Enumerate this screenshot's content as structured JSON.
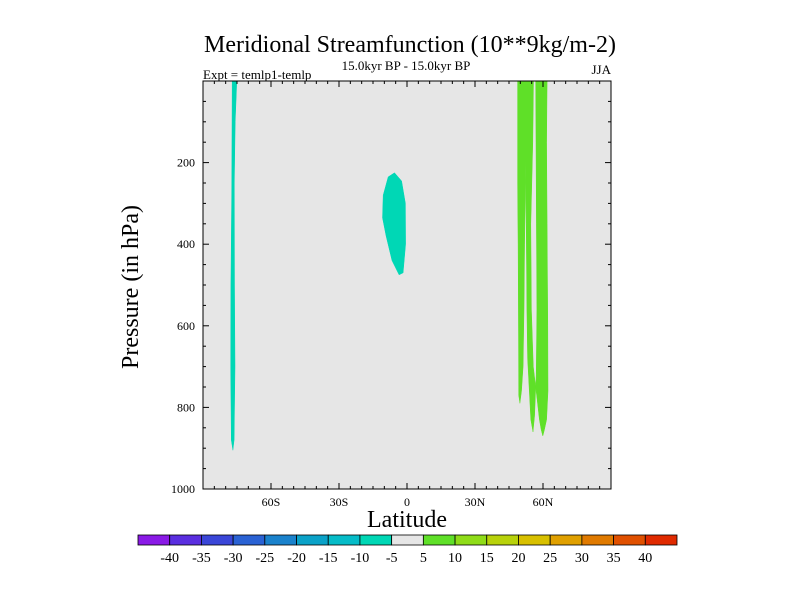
{
  "chart_data": {
    "type": "contour",
    "title": "Meridional Streamfunction (10**9kg/m-2)",
    "subtitle": "15.0kyr BP - 15.0kyr BP",
    "left_label": "Expt = temlp1-temlp",
    "right_label": "JJA",
    "xlabel": "Latitude",
    "ylabel": "Pressure (in hPa)",
    "xlim": [
      -90,
      90
    ],
    "ylim": [
      1000,
      0
    ],
    "x_ticks": [
      {
        "value": -60,
        "label": "60S"
      },
      {
        "value": -30,
        "label": "30S"
      },
      {
        "value": 0,
        "label": "0"
      },
      {
        "value": 30,
        "label": "30N"
      },
      {
        "value": 60,
        "label": "60N"
      }
    ],
    "y_ticks": [
      {
        "value": 200,
        "label": "200"
      },
      {
        "value": 400,
        "label": "400"
      },
      {
        "value": 600,
        "label": "600"
      },
      {
        "value": 800,
        "label": "800"
      },
      {
        "value": 1000,
        "label": "1000"
      }
    ],
    "background_color": "#e6e6e6",
    "colorbar": {
      "labels": [
        "-40",
        "-35",
        "-30",
        "-25",
        "-20",
        "-15",
        "-10",
        "-5",
        "5",
        "10",
        "15",
        "20",
        "25",
        "30",
        "35",
        "40"
      ],
      "colors": [
        "#8a1ae6",
        "#5a2ee0",
        "#3a46d8",
        "#2a62d4",
        "#1a82cc",
        "#0aa2c8",
        "#06bcc8",
        "#00d7b5",
        "#e6e6e6",
        "#5fe028",
        "#8fdc18",
        "#b8d20a",
        "#d8c000",
        "#e0a000",
        "#e07a00",
        "#e05000",
        "#e02a00"
      ]
    },
    "regions": [
      {
        "name": "southern-high-latitude-cell",
        "value_range": "-10 to -5",
        "color": "#00d7b5",
        "points": [
          [
            -77.1,
            0
          ],
          [
            -75.1,
            0
          ],
          [
            -75.8,
            100
          ],
          [
            -76.2,
            250
          ],
          [
            -76.1,
            500
          ],
          [
            -75.9,
            700
          ],
          [
            -76.3,
            880
          ],
          [
            -76.8,
            905
          ],
          [
            -77.5,
            880
          ],
          [
            -77.8,
            700
          ],
          [
            -77.7,
            500
          ],
          [
            -77.3,
            250
          ]
        ]
      },
      {
        "name": "equatorial-upper-cell",
        "value_range": "-10 to -5",
        "color": "#00d7b5",
        "points": [
          [
            -8.3,
            235
          ],
          [
            -5.5,
            225
          ],
          [
            -2.4,
            245
          ],
          [
            -0.7,
            300
          ],
          [
            -0.6,
            400
          ],
          [
            -1.7,
            470
          ],
          [
            -3.5,
            475
          ],
          [
            -6.6,
            440
          ],
          [
            -9.2,
            380
          ],
          [
            -10.8,
            335
          ],
          [
            -10.5,
            280
          ]
        ]
      },
      {
        "name": "northern-mid-latitude-cell",
        "value_range": "5 to 10",
        "color": "#5fe028",
        "points": [
          [
            48.8,
            0
          ],
          [
            55.8,
            0
          ],
          [
            55.5,
            150
          ],
          [
            54.6,
            350
          ],
          [
            54.9,
            560
          ],
          [
            55.7,
            700
          ],
          [
            57.4,
            780
          ],
          [
            58.4,
            830
          ],
          [
            59.2,
            855
          ],
          [
            59.9,
            870
          ],
          [
            60.6,
            855
          ],
          [
            61.6,
            830
          ],
          [
            62.2,
            760
          ],
          [
            62.1,
            600
          ],
          [
            61.8,
            350
          ],
          [
            61.6,
            150
          ],
          [
            61.8,
            0
          ],
          [
            56.8,
            0
          ],
          [
            56.9,
            150
          ],
          [
            57.1,
            350
          ],
          [
            57.3,
            560
          ],
          [
            57.0,
            720
          ],
          [
            56.3,
            820
          ],
          [
            55.6,
            860
          ],
          [
            54.6,
            830
          ],
          [
            53.2,
            680
          ],
          [
            52.9,
            560
          ],
          [
            52.6,
            350
          ],
          [
            52.4,
            250
          ],
          [
            52.1,
            150
          ],
          [
            52.3,
            250
          ],
          [
            51.9,
            400
          ],
          [
            51.6,
            560
          ],
          [
            51.2,
            700
          ],
          [
            50.5,
            760
          ],
          [
            49.8,
            790
          ],
          [
            49.3,
            770
          ],
          [
            49.2,
            620
          ],
          [
            49.0,
            400
          ],
          [
            48.8,
            250
          ]
        ]
      }
    ]
  }
}
